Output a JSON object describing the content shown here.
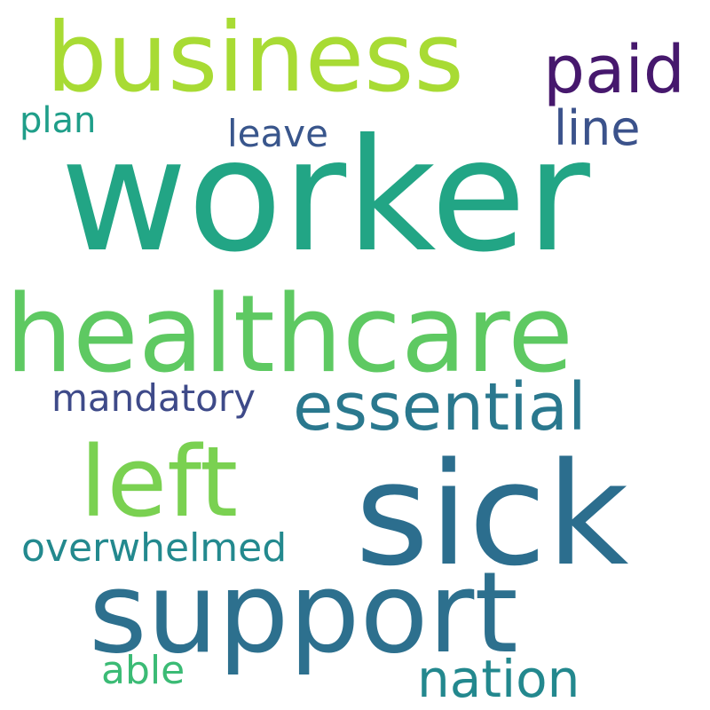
{
  "words": {
    "worker": {
      "text": "worker",
      "color": "#22a585"
    },
    "healthcare": {
      "text": "healthcare",
      "color": "#5ec962"
    },
    "sick": {
      "text": "sick",
      "color": "#2c6e8e"
    },
    "support": {
      "text": "support",
      "color": "#2d708e"
    },
    "business": {
      "text": "business",
      "color": "#a8db34"
    },
    "left": {
      "text": "left",
      "color": "#7ad151"
    },
    "essential": {
      "text": "essential",
      "color": "#2a788e"
    },
    "paid": {
      "text": "paid",
      "color": "#46186d"
    },
    "line": {
      "text": "line",
      "color": "#3b528b"
    },
    "nation": {
      "text": "nation",
      "color": "#23888e"
    },
    "leave": {
      "text": "leave",
      "color": "#39568c"
    },
    "plan": {
      "text": "plan",
      "color": "#1f9e89"
    },
    "mandatory": {
      "text": "mandatory",
      "color": "#3e4a89"
    },
    "overwhelmed": {
      "text": "overwhelmed",
      "color": "#23898e"
    },
    "able": {
      "text": "able",
      "color": "#3bbb75"
    }
  }
}
